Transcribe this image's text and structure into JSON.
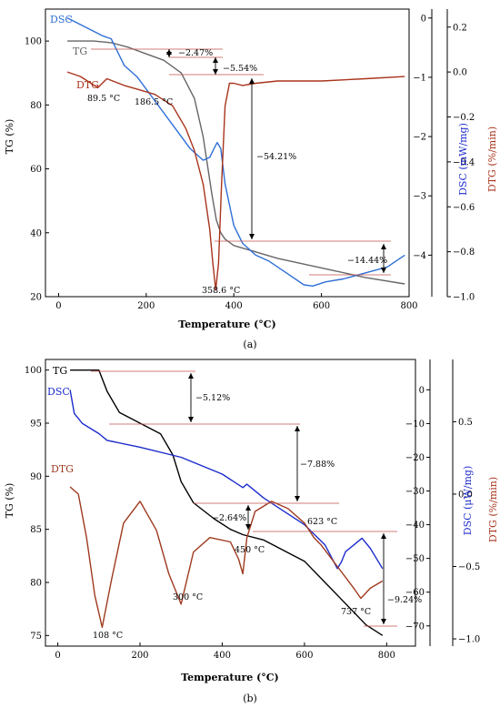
{
  "chart_data": [
    {
      "type": "line",
      "panel_label": "(a)",
      "xlabel": "Temperature (°C)",
      "ylabel_left": "TG (%)",
      "ylabel_right1": "DSC (mW/mg)",
      "ylabel_right2": "DTG (%/min)",
      "xlim": [
        -30,
        800
      ],
      "ylim_left": [
        20,
        110
      ],
      "ylim_right1": [
        -4.7,
        0.15
      ],
      "ylim_right2": [
        -1.0,
        0.28
      ],
      "xticks": [
        "0",
        "200",
        "400",
        "600",
        "800"
      ],
      "yticks_left": [
        "20",
        "40",
        "60",
        "80",
        "100"
      ],
      "yticks_right1": [
        "0",
        "−1",
        "−2",
        "−3",
        "−4"
      ],
      "yticks_right2": [
        "0.2",
        "0.0",
        "−0.2",
        "−0.4",
        "−0.6",
        "−0.8",
        "−1.0"
      ],
      "series": [
        {
          "name": "TG",
          "color": "#666666",
          "axis": "left",
          "x": [
            20,
            80,
            120,
            160,
            200,
            240,
            280,
            310,
            330,
            350,
            360,
            370,
            380,
            400,
            450,
            500,
            600,
            700,
            790
          ],
          "y": [
            100,
            100,
            99.5,
            98,
            96,
            94,
            90,
            82,
            70,
            52,
            44,
            40,
            38,
            36,
            34,
            32,
            29,
            26,
            24
          ]
        },
        {
          "name": "DSC",
          "color": "#2f6fd6",
          "axis": "right1",
          "x": [
            20,
            60,
            100,
            120,
            150,
            180,
            220,
            260,
            300,
            330,
            345,
            355,
            362,
            370,
            380,
            400,
            420,
            450,
            480,
            520,
            560,
            580,
            610,
            650,
            700,
            750,
            790
          ],
          "y": [
            0,
            -0.15,
            -0.3,
            -0.35,
            -0.8,
            -1.0,
            -1.4,
            -1.8,
            -2.2,
            -2.4,
            -2.35,
            -2.2,
            -2.1,
            -2.2,
            -2.8,
            -3.5,
            -3.8,
            -4.0,
            -4.1,
            -4.3,
            -4.5,
            -4.52,
            -4.45,
            -4.4,
            -4.3,
            -4.2,
            -4.0
          ]
        },
        {
          "name": "DTG",
          "color": "#a8341c",
          "axis": "right2",
          "x": [
            20,
            50,
            89.5,
            110,
            150,
            186.5,
            220,
            260,
            290,
            310,
            330,
            345,
            352,
            358.6,
            365,
            372,
            380,
            390,
            400,
            420,
            450,
            500,
            600,
            700,
            790
          ],
          "y": [
            0.0,
            -0.02,
            -0.07,
            -0.03,
            -0.06,
            -0.08,
            -0.1,
            -0.15,
            -0.25,
            -0.35,
            -0.5,
            -0.7,
            -0.85,
            -0.97,
            -0.85,
            -0.5,
            -0.15,
            -0.05,
            -0.05,
            -0.06,
            -0.05,
            -0.04,
            -0.04,
            -0.03,
            -0.02
          ]
        }
      ],
      "annotations": [
        "−2.47%",
        "−5.54%",
        "−54.21%",
        "−14.44%",
        "89.5 °C",
        "186.5 °C",
        "358.6 °C"
      ]
    },
    {
      "type": "line",
      "panel_label": "(b)",
      "xlabel": "Temperature (°C)",
      "ylabel_left": "TG (%)",
      "ylabel_right1": "DSC (μW/mg)",
      "ylabel_right2": "DTG (%/min)",
      "xlim": [
        -30,
        870
      ],
      "ylim_left": [
        74,
        101
      ],
      "ylim_right1": [
        -76,
        9
      ],
      "ylim_right2": [
        -1.05,
        0.93
      ],
      "xticks": [
        "0",
        "200",
        "400",
        "600",
        "800"
      ],
      "yticks_left": [
        "75",
        "80",
        "85",
        "90",
        "95",
        "100"
      ],
      "yticks_right1": [
        "0",
        "−10",
        "−20",
        "−30",
        "−40",
        "−50",
        "−60",
        "−70"
      ],
      "yticks_right2": [
        "0.5",
        "0.0",
        "−0.5",
        "−1.0"
      ],
      "series": [
        {
          "name": "TG",
          "color": "#000000",
          "axis": "left",
          "x": [
            30,
            100,
            120,
            150,
            200,
            250,
            280,
            300,
            330,
            380,
            420,
            450,
            500,
            550,
            600,
            650,
            700,
            750,
            790
          ],
          "y": [
            100,
            100,
            98,
            96,
            95,
            94,
            92,
            89.5,
            87.5,
            86,
            85,
            84.5,
            84,
            83,
            82,
            80,
            78,
            76,
            75
          ]
        },
        {
          "name": "DSC",
          "color": "#1d2ccc",
          "axis": "right1",
          "x": [
            30,
            40,
            60,
            100,
            120,
            200,
            300,
            400,
            450,
            460,
            500,
            550,
            600,
            650,
            680,
            690,
            700,
            720,
            740,
            760,
            790
          ],
          "y": [
            0,
            -7,
            -10,
            -13,
            -15,
            -17,
            -20,
            -25,
            -29,
            -28,
            -32,
            -36,
            -40,
            -46,
            -53,
            -51,
            -48,
            -46,
            -44,
            -47,
            -53
          ]
        },
        {
          "name": "DTG",
          "color": "#9e3a1e",
          "axis": "right2",
          "x": [
            30,
            50,
            70,
            90,
            108,
            130,
            160,
            200,
            240,
            270,
            300,
            330,
            370,
            420,
            440,
            450,
            460,
            480,
            520,
            560,
            600,
            623,
            640,
            680,
            720,
            737,
            760,
            790
          ],
          "y": [
            0.05,
            0.0,
            -0.3,
            -0.7,
            -0.92,
            -0.6,
            -0.2,
            -0.05,
            -0.25,
            -0.55,
            -0.76,
            -0.4,
            -0.3,
            -0.33,
            -0.45,
            -0.55,
            -0.3,
            -0.12,
            -0.05,
            -0.1,
            -0.2,
            -0.3,
            -0.35,
            -0.5,
            -0.65,
            -0.72,
            -0.65,
            -0.6
          ]
        }
      ],
      "annotations": [
        "−5.12%",
        "−7.88%",
        "−2.64%",
        "−9.24%",
        "108 °C",
        "300 °C",
        "450 °C",
        "623 °C",
        "737 °C"
      ]
    }
  ]
}
